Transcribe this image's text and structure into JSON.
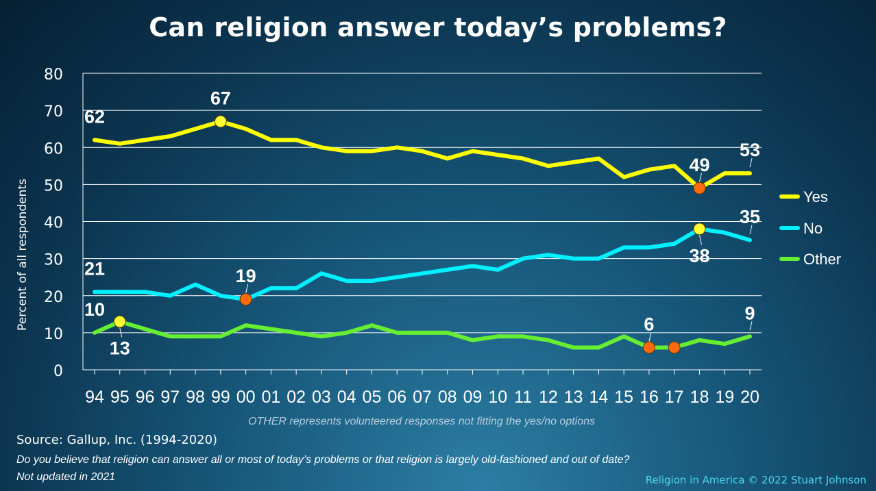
{
  "chart_data": {
    "type": "line",
    "title": "Can religion answer today’s problems?",
    "ylabel": "Percent of all respondents",
    "xlabel": "",
    "ylim": [
      0,
      80
    ],
    "yticks": [
      0,
      10,
      20,
      30,
      40,
      50,
      60,
      70,
      80
    ],
    "grid": true,
    "legend_position": "right",
    "categories": [
      "94",
      "95",
      "96",
      "97",
      "98",
      "99",
      "00",
      "01",
      "02",
      "03",
      "04",
      "05",
      "06",
      "07",
      "08",
      "09",
      "10",
      "11",
      "12",
      "13",
      "14",
      "15",
      "16",
      "17",
      "18",
      "19",
      "20"
    ],
    "x_values": [
      1994,
      1995,
      1996,
      1997,
      1998,
      1999,
      2000,
      2001,
      2002,
      2003,
      2004,
      2005,
      2006,
      2007,
      2008,
      2009,
      2010,
      2011,
      2012,
      2013,
      2014,
      2015,
      2016,
      2017,
      2018,
      2019,
      2020
    ],
    "series": [
      {
        "name": "Yes",
        "color": "#ffff00",
        "x": [
          1994,
          1995,
          1996,
          1997,
          1998,
          1999,
          2000,
          2001,
          2002,
          2003,
          2004,
          2005,
          2006,
          2007,
          2008,
          2009,
          2010,
          2011,
          2012,
          2013,
          2014,
          2015,
          2016,
          2017,
          2018,
          2019,
          2020
        ],
        "y": [
          62,
          61,
          62,
          63,
          65,
          67,
          65,
          62,
          62,
          60,
          59,
          59,
          60,
          59,
          57,
          59,
          58,
          57,
          55,
          56,
          57,
          52,
          54,
          55,
          49,
          53,
          53
        ]
      },
      {
        "name": "No",
        "color": "#00f0ff",
        "x": [
          1994,
          1995,
          1996,
          1997,
          1998,
          1999,
          2000,
          2001,
          2002,
          2003,
          2004,
          2005,
          2006,
          2007,
          2008,
          2009,
          2010,
          2011,
          2012,
          2013,
          2014,
          2015,
          2016,
          2017,
          2018,
          2019,
          2020
        ],
        "y": [
          21,
          21,
          21,
          20,
          23,
          20,
          19,
          22,
          22,
          26,
          24,
          24,
          25,
          26,
          27,
          28,
          27,
          30,
          31,
          30,
          30,
          33,
          33,
          34,
          38,
          37,
          35
        ]
      },
      {
        "name": "Other",
        "color": "#66ee33",
        "x": [
          1994,
          1995,
          1996,
          1997,
          1998,
          1999,
          2000,
          2001,
          2002,
          2003,
          2004,
          2005,
          2006,
          2007,
          2008,
          2009,
          2010,
          2011,
          2012,
          2013,
          2014,
          2015,
          2016,
          2017,
          2018,
          2019,
          2020
        ],
        "y": [
          10,
          13,
          11,
          9,
          9,
          9,
          12,
          11,
          10,
          9,
          10,
          12,
          10,
          10,
          10,
          8,
          9,
          9,
          8,
          6,
          6,
          9,
          6,
          6,
          8,
          7,
          9
        ]
      }
    ],
    "markers": [
      {
        "series": "Yes",
        "x": 1999,
        "y": 67,
        "color": "#ffff33"
      },
      {
        "series": "Yes",
        "x": 2018,
        "y": 49,
        "color": "#ff6a10"
      },
      {
        "series": "No",
        "x": 2000,
        "y": 19,
        "color": "#ff6a10"
      },
      {
        "series": "No",
        "x": 2018,
        "y": 38,
        "color": "#ffff33"
      },
      {
        "series": "Other",
        "x": 1995,
        "y": 13,
        "color": "#ffff33"
      },
      {
        "series": "Other",
        "x": 2016,
        "y": 6,
        "color": "#ff6a10"
      },
      {
        "series": "Other",
        "x": 2017,
        "y": 6,
        "color": "#ff6a10"
      }
    ],
    "annotations": [
      {
        "text": "62",
        "x": 1994,
        "y": 62,
        "pos": "above"
      },
      {
        "text": "67",
        "x": 1999,
        "y": 67,
        "pos": "above"
      },
      {
        "text": "49",
        "x": 2018,
        "y": 49,
        "pos": "above",
        "leader": true
      },
      {
        "text": "53",
        "x": 2020,
        "y": 53,
        "pos": "above",
        "leader": true
      },
      {
        "text": "21",
        "x": 1994,
        "y": 21,
        "pos": "above"
      },
      {
        "text": "19",
        "x": 2000,
        "y": 19,
        "pos": "above",
        "leader": true
      },
      {
        "text": "38",
        "x": 2018,
        "y": 38,
        "pos": "below",
        "leader": true
      },
      {
        "text": "35",
        "x": 2020,
        "y": 35,
        "pos": "above",
        "leader": true
      },
      {
        "text": "10",
        "x": 1994,
        "y": 10,
        "pos": "above"
      },
      {
        "text": "13",
        "x": 1995,
        "y": 13,
        "pos": "below",
        "leader": true
      },
      {
        "text": "6",
        "x": 2016,
        "y": 6,
        "pos": "above",
        "leader": true
      },
      {
        "text": "9",
        "x": 2020,
        "y": 9,
        "pos": "above",
        "leader": true
      }
    ],
    "note": "OTHER represents volunteered responses not fitting the yes/no options"
  },
  "footer": {
    "source": "Source: Gallup, Inc. (1994-2020)",
    "question": "Do you believe that religion can answer all or most of today’s problems or that religion is largely old-fashioned and out of date?",
    "update_note": "Not updated in 2021",
    "credit": "Religion in America © 2022 Stuart Johnson"
  }
}
